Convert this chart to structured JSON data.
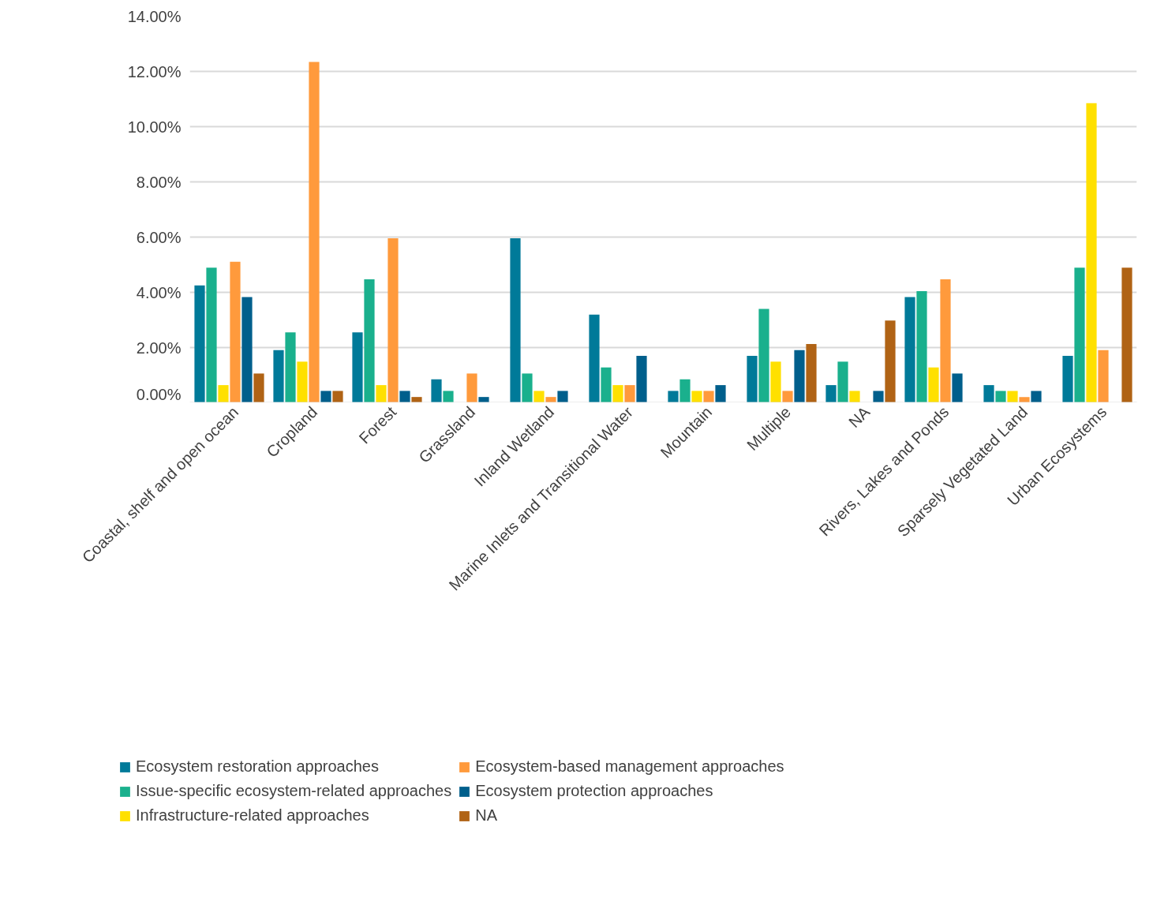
{
  "chart_data": {
    "type": "bar",
    "categories": [
      "Coastal, shelf and open ocean",
      "Cropland",
      "Forest",
      "Grassland",
      "Inland Wetland",
      "Marine Inlets and Transitional Water",
      "Mountain",
      "Multiple",
      "NA",
      "Rivers, Lakes and Ponds",
      "Sparsely Vegetated Land",
      "Urban Ecosystems"
    ],
    "series": [
      {
        "name": "Ecosystem restoration approaches",
        "color": "#007a99",
        "values": [
          4.25,
          1.91,
          2.55,
          0.85,
          5.96,
          3.19,
          0.43,
          1.7,
          0.64,
          3.83,
          0.64,
          1.7
        ]
      },
      {
        "name": "Issue-specific ecosystem-related approaches",
        "color": "#1ab08d",
        "values": [
          4.89,
          2.55,
          4.47,
          0.43,
          1.06,
          1.28,
          0.85,
          3.4,
          1.49,
          4.04,
          0.43,
          4.89
        ]
      },
      {
        "name": "Infrastructure-related approaches",
        "color": "#ffe000",
        "values": [
          0.64,
          1.49,
          0.64,
          null,
          0.43,
          0.64,
          0.43,
          1.49,
          0.43,
          1.28,
          0.43,
          10.85
        ]
      },
      {
        "name": "Ecosystem-based management approaches",
        "color": "#ff9a3c",
        "values": [
          5.11,
          12.34,
          5.96,
          1.06,
          0.21,
          0.64,
          0.43,
          0.43,
          null,
          4.47,
          0.21,
          1.91
        ]
      },
      {
        "name": "Ecosystem protection approaches",
        "color": "#005f8c",
        "values": [
          3.83,
          0.43,
          0.43,
          0.21,
          0.43,
          1.7,
          0.64,
          1.91,
          0.43,
          1.06,
          0.43,
          null
        ]
      },
      {
        "name": "NA",
        "color": "#b06315",
        "values": [
          1.06,
          0.43,
          0.21,
          null,
          null,
          null,
          null,
          2.13,
          2.98,
          null,
          null,
          4.89
        ]
      }
    ],
    "ylim": [
      0,
      14
    ],
    "yticks": [
      {
        "value": 0,
        "label": "0.00%"
      },
      {
        "value": 2,
        "label": "2.00%"
      },
      {
        "value": 4,
        "label": "4.00%"
      },
      {
        "value": 6,
        "label": "6.00%"
      },
      {
        "value": 8,
        "label": "8.00%"
      },
      {
        "value": 10,
        "label": "10.00%"
      },
      {
        "value": 12,
        "label": "12.00%"
      },
      {
        "value": 14,
        "label": "14.00%"
      }
    ],
    "grid": "y",
    "legend": "bottom"
  }
}
